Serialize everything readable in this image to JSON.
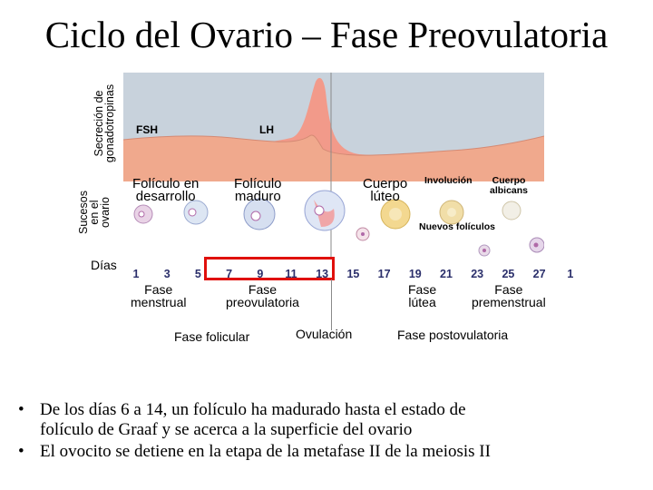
{
  "title": "Ciclo del Ovario – Fase Preovulatoria",
  "axis_labels": {
    "secretion_line1": "Secreción de",
    "secretion_line2": "gonadotropinas",
    "events_line1": "Sucesos",
    "events_line2": "en el",
    "events_line3": "ovario",
    "days": "Días"
  },
  "hormones": {
    "fsh": "FSH",
    "lh": "LH"
  },
  "ovary_events": {
    "developing_1": "Folículo en",
    "developing_2": "desarrollo",
    "mature_1": "Folículo",
    "mature_2": "maduro",
    "corpus_luteum_1": "Cuerpo",
    "corpus_luteum_2": "lúteo",
    "involution": "Involución",
    "albicans_1": "Cuerpo",
    "albicans_2": "albicans",
    "new_follicles": "Nuevos folículos"
  },
  "days": [
    "1",
    "3",
    "5",
    "7",
    "9",
    "11",
    "13",
    "15",
    "17",
    "19",
    "21",
    "23",
    "25",
    "27",
    "1"
  ],
  "phases": {
    "menstrual_1": "Fase",
    "menstrual_2": "menstrual",
    "preovulatory_1": "Fase",
    "preovulatory_2": "preovulatoria",
    "luteal_1": "Fase",
    "luteal_2": "lútea",
    "premenstrual_1": "Fase",
    "premenstrual_2": "premenstrual"
  },
  "periods": {
    "follicular": "Fase folicular",
    "ovulation": "Ovulación",
    "postovulatory": "Fase postovulatoria"
  },
  "bullets": {
    "b1_line1": "De los días 6 a 14, un folículo ha madurado hasta el estado de",
    "b1_line2": "folículo de Graaf y se acerca a la superficie del  ovario",
    "b2_line1": "El ovocito se detiene en la etapa de la metafase II de la meiosis II",
    "marker": "•"
  },
  "colors": {
    "fsh_band": "#f0a98d",
    "lh_band": "#f29a8a",
    "chart_bg": "#c8d2dc",
    "highlight_box": "#e0100c",
    "day_text": "#2b2f6b"
  }
}
